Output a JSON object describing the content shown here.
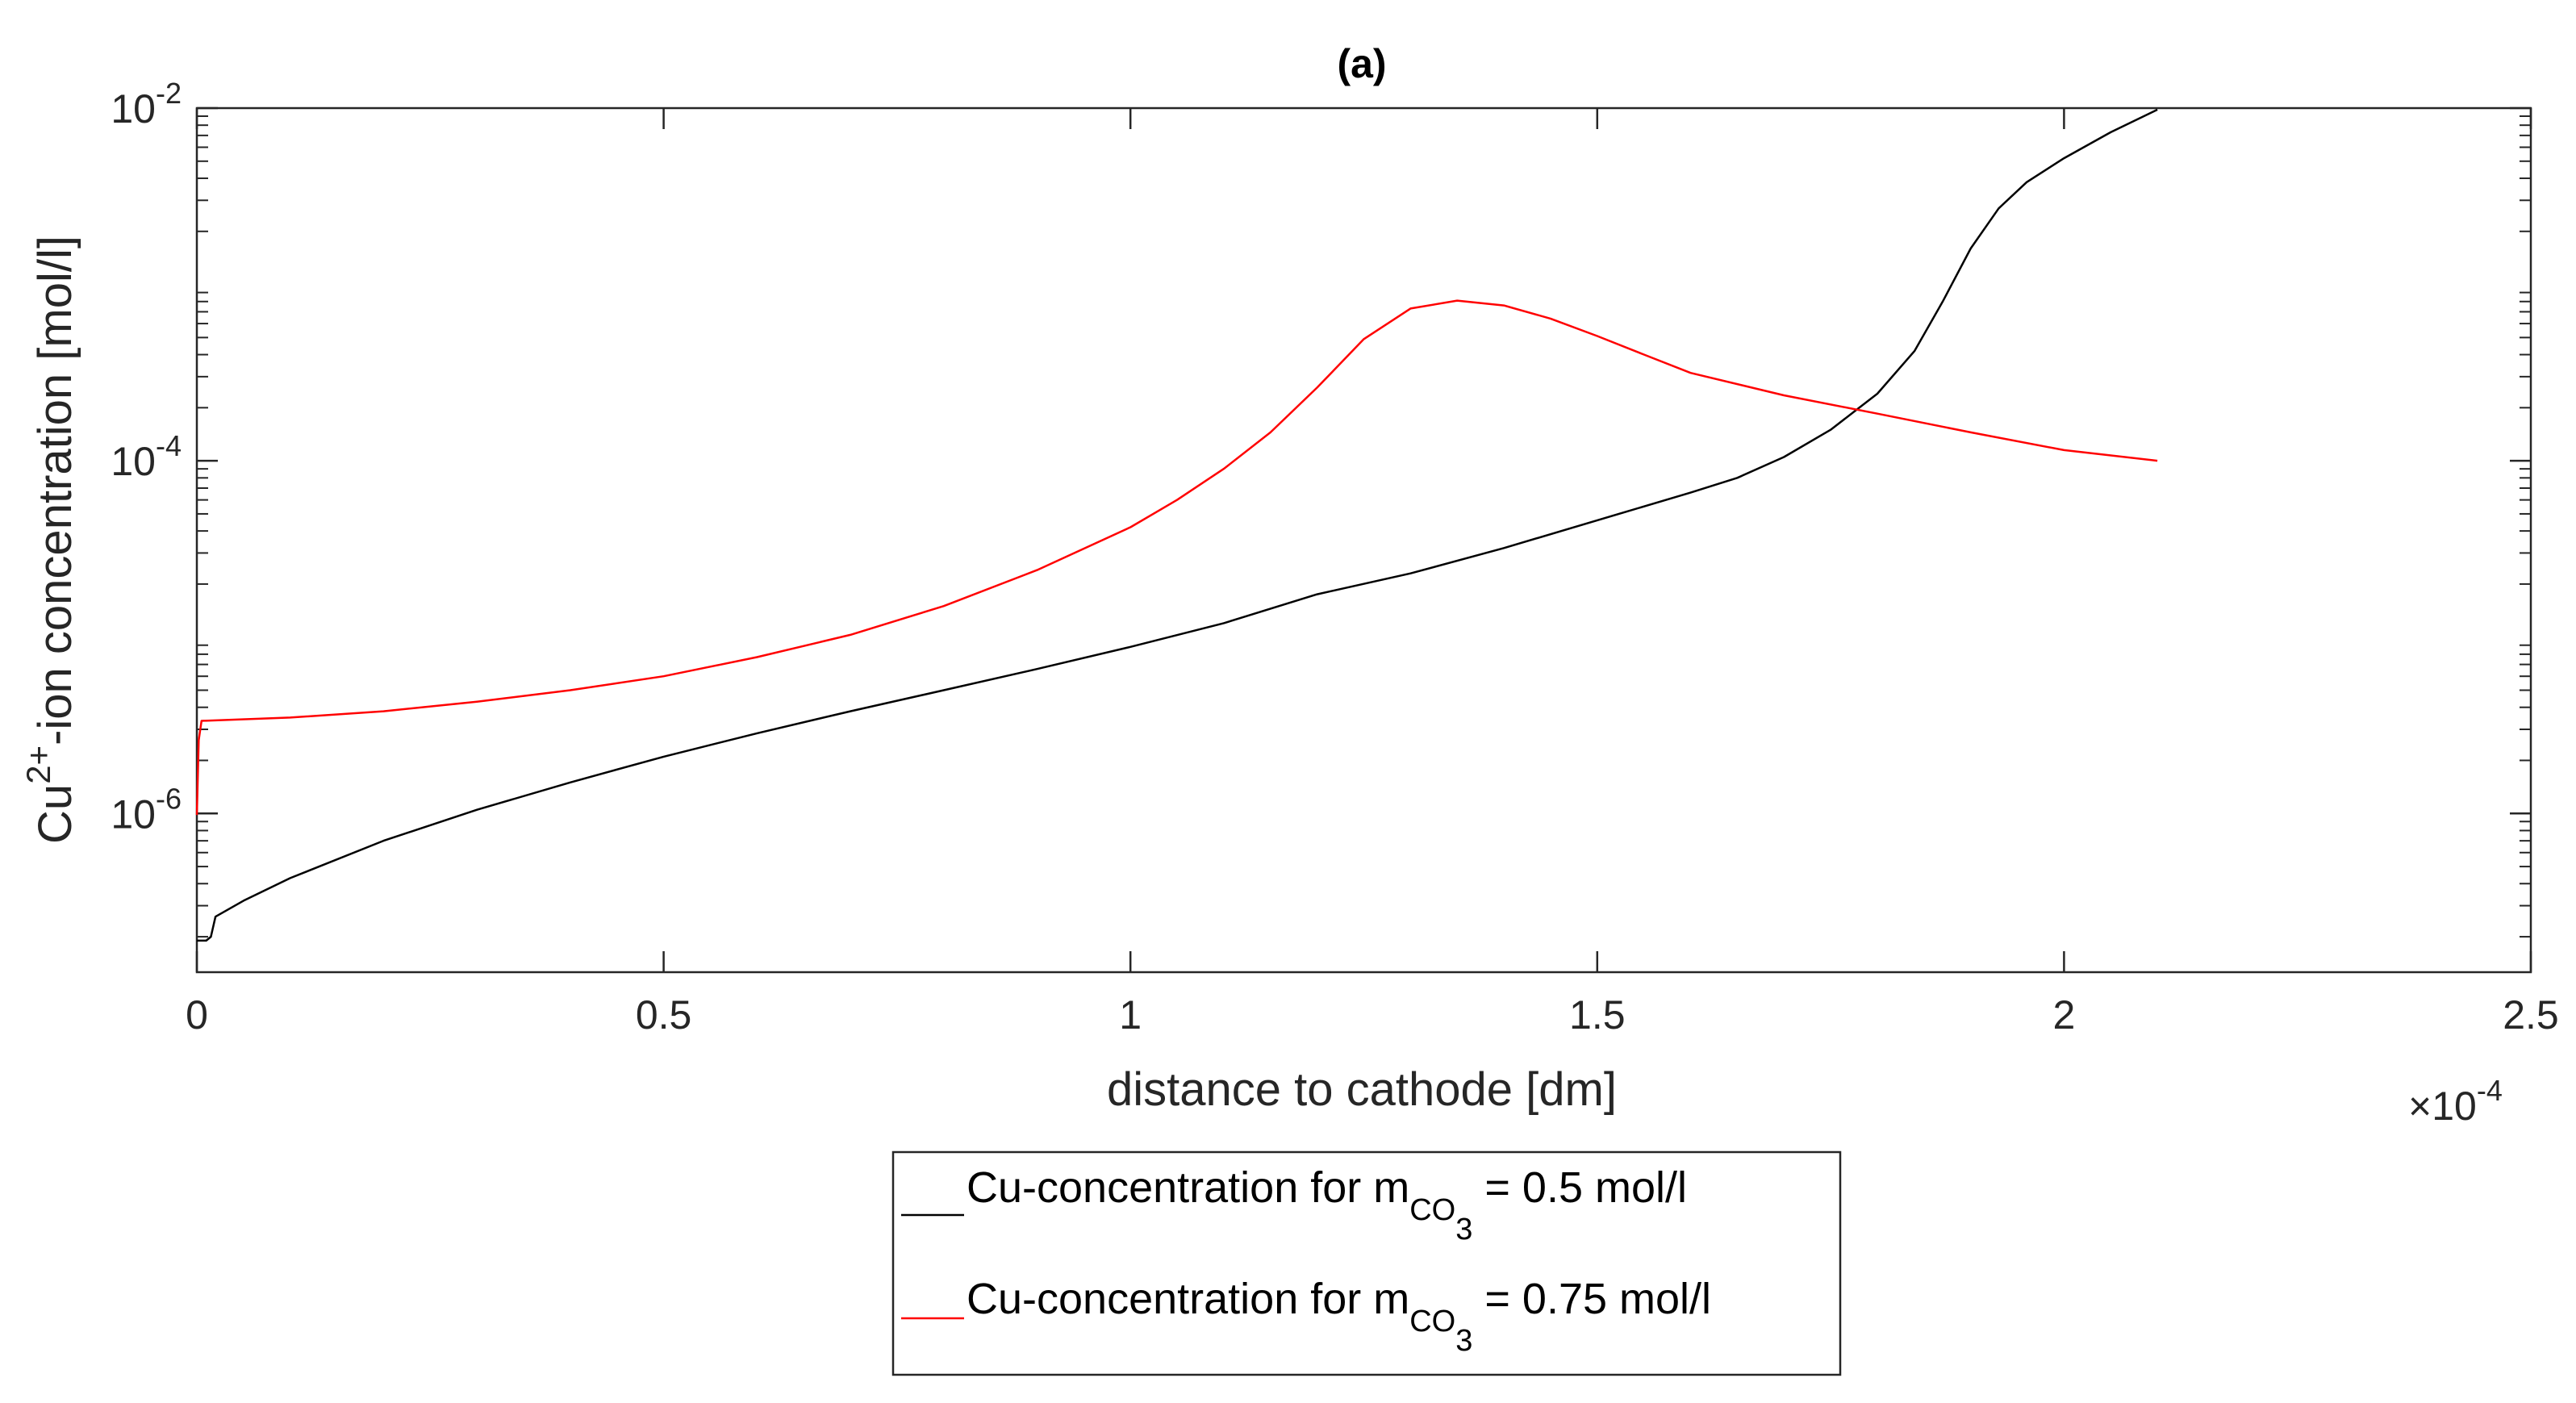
{
  "chart_data": {
    "type": "line",
    "title": "(a)",
    "xlabel": "distance to cathode [dm]",
    "ylabel": {
      "prefix": "Cu",
      "superscript": "2+",
      "suffix": "-ion concentration [mol/l]"
    },
    "x_scale_factor": {
      "base": "×10",
      "exponent": "-4"
    },
    "xlim": [
      0,
      2.5
    ],
    "ylim_log10": [
      -6.9,
      -2
    ],
    "yscale": "log",
    "x_ticks": [
      0,
      0.5,
      1,
      1.5,
      2,
      2.5
    ],
    "x_tick_labels": [
      "0",
      "0.5",
      "1",
      "1.5",
      "2",
      "2.5"
    ],
    "y_ticks": [
      {
        "base": "10",
        "exponent": "-6",
        "log10": -6
      },
      {
        "base": "10",
        "exponent": "-4",
        "log10": -4
      },
      {
        "base": "10",
        "exponent": "-2",
        "log10": -2
      }
    ],
    "grid": false,
    "legend_position": "bottom-center",
    "series": [
      {
        "name": "Cu-concentration for m_CO3 = 0.5 mol/l",
        "legend": {
          "prefix": "Cu-concentration for m",
          "subscript": "CO",
          "subsubscript": "3",
          "suffix": " = 0.5 mol/l"
        },
        "color": "#000000",
        "points": [
          [
            0,
            1.9e-07
          ],
          [
            0.01,
            1.9e-07
          ],
          [
            0.015,
            2e-07
          ],
          [
            0.02,
            2.6e-07
          ],
          [
            0.05,
            3.2e-07
          ],
          [
            0.1,
            4.3e-07
          ],
          [
            0.2,
            7e-07
          ],
          [
            0.3,
            1.05e-06
          ],
          [
            0.4,
            1.5e-06
          ],
          [
            0.5,
            2.1e-06
          ],
          [
            0.6,
            2.85e-06
          ],
          [
            0.7,
            3.8e-06
          ],
          [
            0.8,
            5e-06
          ],
          [
            0.9,
            6.6e-06
          ],
          [
            1.0,
            8.8e-06
          ],
          [
            1.1,
            1.2e-05
          ],
          [
            1.2,
            1.75e-05
          ],
          [
            1.3,
            2.3e-05
          ],
          [
            1.4,
            3.2e-05
          ],
          [
            1.5,
            4.6e-05
          ],
          [
            1.6,
            6.6e-05
          ],
          [
            1.65,
            8e-05
          ],
          [
            1.7,
            0.000105
          ],
          [
            1.75,
            0.00015
          ],
          [
            1.8,
            0.00024
          ],
          [
            1.84,
            0.00042
          ],
          [
            1.87,
            0.0008
          ],
          [
            1.9,
            0.0016
          ],
          [
            1.93,
            0.0027
          ],
          [
            1.96,
            0.0038
          ],
          [
            2.0,
            0.0052
          ],
          [
            2.05,
            0.0073
          ],
          [
            2.1,
            0.0098
          ]
        ]
      },
      {
        "name": "Cu-concentration for m_CO3 = 0.75 mol/l",
        "legend": {
          "prefix": "Cu-concentration for m",
          "subscript": "CO",
          "subsubscript": "3",
          "suffix": " = 0.75 mol/l"
        },
        "color": "#ff0000",
        "points": [
          [
            0,
            9.8e-07
          ],
          [
            0.002,
            2.6e-06
          ],
          [
            0.005,
            3.35e-06
          ],
          [
            0.1,
            3.5e-06
          ],
          [
            0.2,
            3.8e-06
          ],
          [
            0.3,
            4.3e-06
          ],
          [
            0.4,
            5e-06
          ],
          [
            0.5,
            6e-06
          ],
          [
            0.6,
            7.7e-06
          ],
          [
            0.7,
            1.03e-05
          ],
          [
            0.8,
            1.5e-05
          ],
          [
            0.9,
            2.4e-05
          ],
          [
            1.0,
            4.2e-05
          ],
          [
            1.05,
            6e-05
          ],
          [
            1.1,
            9e-05
          ],
          [
            1.15,
            0.000145
          ],
          [
            1.2,
            0.00026
          ],
          [
            1.25,
            0.00049
          ],
          [
            1.3,
            0.00073
          ],
          [
            1.35,
            0.00081
          ],
          [
            1.4,
            0.00076
          ],
          [
            1.45,
            0.00064
          ],
          [
            1.5,
            0.00051
          ],
          [
            1.55,
            0.0004
          ],
          [
            1.6,
            0.000315
          ],
          [
            1.7,
            0.000235
          ],
          [
            1.8,
            0.000185
          ],
          [
            1.9,
            0.000145
          ],
          [
            2.0,
            0.000115
          ],
          [
            2.1,
            0.0001
          ]
        ]
      }
    ]
  }
}
